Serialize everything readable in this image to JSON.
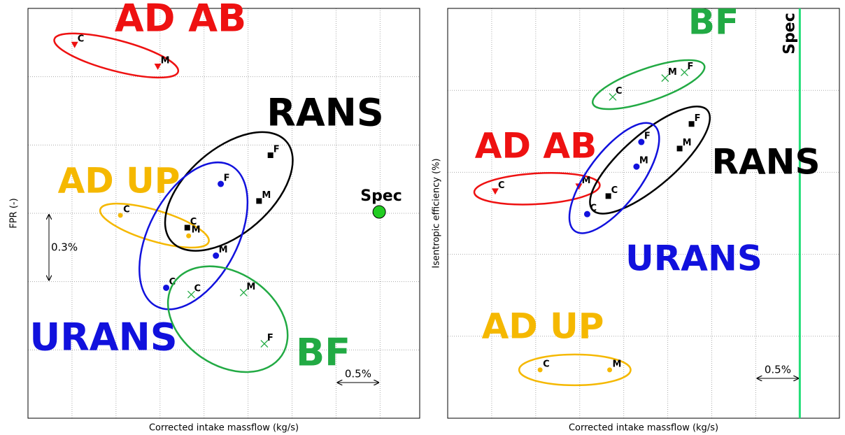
{
  "chart_data": [
    {
      "type": "scatter",
      "x_label": "Corrected intake massflow (kg/s)",
      "y_label": "FPR (-)",
      "xlim": [
        0,
        8.9
      ],
      "ylim": [
        0,
        6
      ],
      "xticks": [
        1,
        2,
        3,
        4,
        5,
        6,
        7,
        8
      ],
      "yticks": [
        1,
        2,
        3,
        4,
        5
      ],
      "grid": true,
      "series": [
        {
          "name": "AD AB",
          "color": "#ee1111",
          "marker": "triangle-down",
          "x": [
            1.06,
            2.95
          ],
          "y": [
            5.47,
            5.15
          ],
          "point_labels": [
            "C",
            "M"
          ]
        },
        {
          "name": "AD UP",
          "color": "#f5b800",
          "marker": "dot",
          "x": [
            2.1,
            3.65
          ],
          "y": [
            2.97,
            2.67
          ],
          "point_labels": [
            "C",
            "M"
          ]
        },
        {
          "name": "RANS",
          "color": "#000000",
          "marker": "square",
          "x": [
            3.62,
            5.25,
            5.51
          ],
          "y": [
            2.79,
            3.18,
            3.85
          ],
          "point_labels": [
            "C",
            "M",
            "F"
          ]
        },
        {
          "name": "URANS",
          "color": "#1111dd",
          "marker": "circle",
          "x": [
            3.14,
            4.27,
            4.38
          ],
          "y": [
            1.91,
            2.38,
            3.43
          ],
          "point_labels": [
            "C",
            "M",
            "F"
          ]
        },
        {
          "name": "BF",
          "color": "#22aa44",
          "marker": "x",
          "x": [
            3.71,
            4.9,
            5.37
          ],
          "y": [
            1.81,
            1.84,
            1.09
          ],
          "point_labels": [
            "C",
            "M",
            "F"
          ]
        },
        {
          "name": "Spec",
          "color": "#22cc22",
          "marker": "big-circle",
          "x": [
            7.98
          ],
          "y": [
            3.02
          ]
        }
      ],
      "scale_bars": [
        {
          "text": "0.5%",
          "axis": "x"
        },
        {
          "text": "0.3%",
          "axis": "y"
        }
      ]
    },
    {
      "type": "scatter",
      "x_label": "Corrected intake massflow (kg/s)",
      "y_label": "Isentropic efficiency (%)",
      "xlim": [
        0,
        8.9
      ],
      "ylim": [
        0,
        5
      ],
      "xticks": [
        1,
        2,
        3,
        4,
        5,
        6,
        7,
        8
      ],
      "yticks": [
        1,
        2,
        3,
        4
      ],
      "grid": true,
      "series": [
        {
          "name": "AD AB",
          "color": "#ee1111",
          "marker": "triangle-down",
          "x": [
            1.08,
            2.98
          ],
          "y": [
            2.77,
            2.83
          ],
          "point_labels": [
            "C",
            "M"
          ]
        },
        {
          "name": "AD UP",
          "color": "#f5b800",
          "marker": "dot",
          "x": [
            2.1,
            3.68
          ],
          "y": [
            0.59,
            0.59
          ],
          "point_labels": [
            "C",
            "M"
          ]
        },
        {
          "name": "RANS",
          "color": "#000000",
          "marker": "square",
          "x": [
            3.65,
            5.27,
            5.54
          ],
          "y": [
            2.71,
            3.29,
            3.59
          ],
          "point_labels": [
            "C",
            "M",
            "F"
          ]
        },
        {
          "name": "URANS",
          "color": "#1111dd",
          "marker": "circle",
          "x": [
            3.17,
            4.29,
            4.4
          ],
          "y": [
            2.49,
            3.07,
            3.37
          ],
          "point_labels": [
            "C",
            "M",
            "F"
          ]
        },
        {
          "name": "BF",
          "color": "#22aa44",
          "marker": "x",
          "x": [
            3.75,
            4.94,
            5.38
          ],
          "y": [
            3.92,
            4.15,
            4.22
          ],
          "point_labels": [
            "C",
            "M",
            "F"
          ]
        }
      ],
      "reference_line": {
        "label": "Spec",
        "x": 8.0,
        "color": "#22dd77"
      },
      "scale_bars": [
        {
          "text": "0.5%",
          "axis": "x"
        }
      ]
    }
  ]
}
